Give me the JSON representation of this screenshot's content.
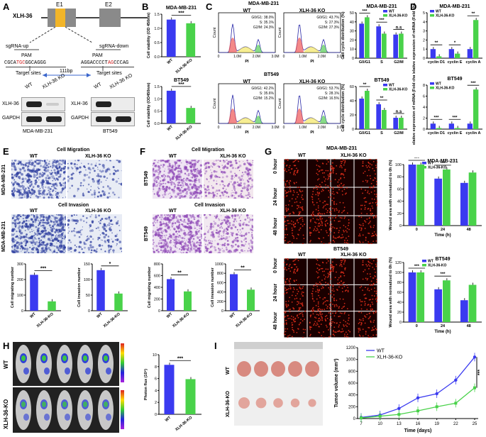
{
  "panel_labels": {
    "A": "A",
    "B": "B",
    "C": "C",
    "D": "D",
    "E": "E",
    "F": "F",
    "G": "G",
    "H": "H",
    "I": "I"
  },
  "colors": {
    "wt": "#3a3af0",
    "ko": "#49d24a",
    "micro_cell": "#2f3fa0",
    "micro_bt": "#8d47b6",
    "wound": "#d42b18",
    "gene_box": "#888888",
    "exon1": "#f2b529"
  },
  "panelA": {
    "gene": "XLH-36",
    "exon1": "E1",
    "exon2": "E2",
    "sgrna_up": "sgRNA-up",
    "sgrna_down": "sgRNA-down",
    "pam_left": "PAM",
    "pam_right": "PAM",
    "seq_left_pre": "CGCA",
    "seq_left_red": "TGC",
    "seq_left_post": "GGCAGGG",
    "seq_right_pre": "AGGACCCCT",
    "seq_right_red": "AG",
    "seq_right_post": "CCCAG",
    "target_left": "Target sites",
    "target_right": "Target sites",
    "distance": "111bp",
    "blot_left": {
      "wt": "WT",
      "ko": "XLH-36 KO",
      "row1": "XLH-36",
      "row2": "GAPDH",
      "cell": "MDA-MB-231"
    },
    "blot_right": {
      "wt": "WT",
      "ko": "XLH-36 KO",
      "row1": "XLH-36",
      "row2": "GAPDH",
      "cell": "BT549"
    }
  },
  "panelB": {
    "top": {
      "title": "MDA-MB-231",
      "ylabel": "Cell viability (OD 450nm)",
      "sig": "***",
      "categories": [
        "WT",
        "XLH-36-KO"
      ],
      "yticks": [
        "0.0",
        "0.5",
        "1.0",
        "1.5"
      ]
    },
    "bottom": {
      "title": "BT549",
      "ylabel": "Cell viability (OD450nm)",
      "sig": "***",
      "categories": [
        "WT",
        "XLH-36-KO"
      ],
      "yticks": [
        "0.0",
        "0.5",
        "1.0",
        "1.5"
      ]
    }
  },
  "panelC": {
    "mda": {
      "title": "MDA-MB-231",
      "wt": "WT",
      "ko": "XLH-36 KO",
      "wt_stats": [
        "G0/G1: 38.0%",
        "S: 35.1%",
        "G2/M: 24.3%"
      ],
      "ko_stats": [
        "G0/G1: 43.7%",
        "S: 27.3%",
        "G2/M: 27.3%"
      ],
      "xticks": [
        "0",
        "1.0M",
        "2.0M",
        "3.0M"
      ],
      "xlabel": "PI",
      "ylabel": "Count"
    },
    "bt": {
      "title": "BT549",
      "wt": "WT",
      "ko": "XLH-36 KO",
      "wt_stats": [
        "G0/G1: 42.2%",
        "S: 35.6%",
        "G2/M: 15.2%"
      ],
      "ko_stats": [
        "G0/G1: 53.7%",
        "S: 28.1%",
        "G2/M: 16.5%"
      ],
      "xticks": [
        "0",
        "1.0M",
        "2.0M",
        "3.0M"
      ],
      "xlabel": "PI",
      "ylabel": "Count"
    },
    "bar_mda": {
      "title": "MDA-MB-231",
      "ylabel": "Cell cycle distribution (%)",
      "yticks": [
        "0",
        "10",
        "20",
        "30",
        "40",
        "50"
      ],
      "legend": [
        "WT",
        "XLH-36-KO"
      ],
      "categories": [
        "G0/G1",
        "S",
        "G2/M"
      ],
      "sig": [
        "***",
        "***",
        "n.s"
      ]
    },
    "bar_bt": {
      "title": "BT549",
      "ylabel": "Cell cycle distribution (%)",
      "yticks": [
        "0",
        "20",
        "40",
        "60"
      ],
      "legend": [
        "WT",
        "XLH-36-KO"
      ],
      "categories": [
        "G0/G1",
        "S",
        "G2/M"
      ],
      "sig": [
        "**",
        "**",
        "n.s"
      ]
    }
  },
  "panelD": {
    "mda": {
      "title": "MDA-MB-231",
      "ylabel": "Relative expression of mRNA (Fold change)",
      "yticks": [
        "0",
        "1",
        "2",
        "3",
        "4",
        "5"
      ],
      "legend": [
        "WT",
        "XLH-36-KO"
      ],
      "categories": [
        "cyclin D1",
        "cyclin E",
        "cyclin A"
      ],
      "sig": [
        "**",
        "*",
        "**"
      ]
    },
    "bt": {
      "title": "BT549",
      "ylabel": "Relative expression of mRNA (Fold change)",
      "yticks": [
        "0",
        "2",
        "4",
        "6",
        "8"
      ],
      "legend": [
        "WT",
        "XLH-36-KO"
      ],
      "categories": [
        "cyclin D1",
        "cyclin E",
        "cyclin A"
      ],
      "sig": [
        "***",
        "***",
        "***"
      ]
    }
  },
  "panelE": {
    "migration_title": "Cell Migration",
    "invasion_title": "Cell Invasion",
    "wt": "WT",
    "ko": "XLH-36 KO",
    "cell": "MDA-MB-231",
    "bar_mig": {
      "ylabel": "Cell migrating number",
      "yticks": [
        "0",
        "100",
        "200",
        "300"
      ],
      "categories": [
        "WT",
        "XLH-36-KO"
      ],
      "sig": "***"
    },
    "bar_inv": {
      "ylabel": "Cell invasion number",
      "yticks": [
        "0",
        "50",
        "100",
        "150"
      ],
      "categories": [
        "WT",
        "XLH-36-KO"
      ],
      "sig": "*"
    }
  },
  "panelF": {
    "migration_title": "Cell  Migration",
    "invasion_title": "Cell  Invasion",
    "wt": "WT",
    "ko": "XLH-36 KO",
    "cell": "BT549",
    "bar_mig": {
      "ylabel": "Cell migrating number",
      "yticks": [
        "0",
        "200",
        "400",
        "600",
        "800"
      ],
      "categories": [
        "WT",
        "XLH-36-KO"
      ],
      "sig": "**"
    },
    "bar_inv": {
      "ylabel": "Cell invasion number",
      "yticks": [
        "0",
        "200",
        "400",
        "600",
        "800",
        "1000"
      ],
      "categories": [
        "WT",
        "XLH-36-KO"
      ],
      "sig": "**"
    }
  },
  "panelG": {
    "mda": {
      "title": "MDA-MB-231",
      "wt": "WT",
      "ko": "XLH-36 KO",
      "rows": [
        "0 hour",
        "24 hour",
        "48 hour"
      ],
      "ylabel": "Wound area with normalized to 0h (%)",
      "xlabel": "Time  (h)",
      "yticks": [
        "0",
        "20",
        "40",
        "60",
        "80",
        "100"
      ],
      "xticks": [
        "0",
        "24",
        "48"
      ],
      "legend": [
        "WT",
        "XLH-36-KO"
      ],
      "sig": [
        "***",
        "***"
      ]
    },
    "bt": {
      "title": "BT549",
      "wt": "WT",
      "ko": "XLH-36 KO",
      "rows": [
        "0 hour",
        "24 hour",
        "48 hour"
      ],
      "ylabel": "Wound area with normalized to 0h (%)",
      "xlabel": "Time  (h)",
      "yticks": [
        "0",
        "20",
        "40",
        "60",
        "80",
        "100",
        "120"
      ],
      "xticks": [
        "0",
        "24",
        "48"
      ],
      "legend": [
        "WT",
        "XLH-36-KO"
      ],
      "sig": [
        "***",
        "***"
      ]
    }
  },
  "panelH": {
    "wt": "WT",
    "ko": "XLH-36-KO",
    "ylabel": "Photon flux (10⁸)",
    "yticks": [
      "0",
      "2",
      "4",
      "6",
      "8",
      "10"
    ],
    "categories": [
      "WT",
      "XLH-36-KO"
    ],
    "sig": "***"
  },
  "panelI": {
    "wt": "WT",
    "ko": "XLH-36-KO",
    "ylabel": "Tumor volume (mm³)",
    "xlabel": "Time (days)",
    "xticks": [
      "7",
      "10",
      "13",
      "16",
      "19",
      "22",
      "25"
    ],
    "yticks": [
      "0",
      "200",
      "400",
      "600",
      "800",
      "1000",
      "1200"
    ],
    "legend": [
      "WT",
      "XLH-36-KO"
    ],
    "sig": "***"
  },
  "chart_data": [
    {
      "id": "B_mda",
      "type": "bar",
      "categories": [
        "WT",
        "XLH-36-KO"
      ],
      "values": [
        1.31,
        1.18
      ],
      "ylim": [
        0,
        1.5
      ],
      "ylabel": "Cell viability (OD 450nm)",
      "title": "MDA-MB-231"
    },
    {
      "id": "B_bt",
      "type": "bar",
      "categories": [
        "WT",
        "XLH-36-KO"
      ],
      "values": [
        1.33,
        0.63
      ],
      "ylim": [
        0,
        1.5
      ],
      "ylabel": "Cell viability (OD450nm)",
      "title": "BT549"
    },
    {
      "id": "C_mda",
      "type": "bar",
      "categories": [
        "G0/G1",
        "S",
        "G2/M"
      ],
      "series": [
        {
          "name": "WT",
          "values": [
            38,
            35,
            26
          ]
        },
        {
          "name": "XLH-36-KO",
          "values": [
            45,
            27,
            27
          ]
        }
      ],
      "ylim": [
        0,
        50
      ],
      "ylabel": "Cell cycle distribution (%)",
      "title": "MDA-MB-231"
    },
    {
      "id": "C_bt",
      "type": "bar",
      "categories": [
        "G0/G1",
        "S",
        "G2/M"
      ],
      "series": [
        {
          "name": "WT",
          "values": [
            43,
            35,
            16
          ]
        },
        {
          "name": "XLH-36-KO",
          "values": [
            54,
            27,
            16
          ]
        }
      ],
      "ylim": [
        0,
        60
      ],
      "ylabel": "Cell cycle distribution (%)",
      "title": "BT549"
    },
    {
      "id": "D_mda",
      "type": "bar",
      "categories": [
        "cyclin D1",
        "cyclin E",
        "cyclin A"
      ],
      "series": [
        {
          "name": "WT",
          "values": [
            1,
            1,
            1
          ]
        },
        {
          "name": "XLH-36-KO",
          "values": [
            0.2,
            0.5,
            4.2
          ]
        }
      ],
      "ylim": [
        0,
        5
      ],
      "ylabel": "Relative expression of mRNA (Fold change)",
      "title": "MDA-MB-231"
    },
    {
      "id": "D_bt",
      "type": "bar",
      "categories": [
        "cyclin D1",
        "cyclin E",
        "cyclin A"
      ],
      "series": [
        {
          "name": "WT",
          "values": [
            1,
            1,
            1
          ]
        },
        {
          "name": "XLH-36-KO",
          "values": [
            0.2,
            0.2,
            7.2
          ]
        }
      ],
      "ylim": [
        0,
        8
      ],
      "ylabel": "Relative expression of mRNA (Fold change)",
      "title": "BT549"
    },
    {
      "id": "E_mig",
      "type": "bar",
      "categories": [
        "WT",
        "XLH-36-KO"
      ],
      "values": [
        230,
        60
      ],
      "ylim": [
        0,
        300
      ],
      "ylabel": "Cell migrating number"
    },
    {
      "id": "E_inv",
      "type": "bar",
      "categories": [
        "WT",
        "XLH-36-KO"
      ],
      "values": [
        130,
        55
      ],
      "ylim": [
        0,
        150
      ],
      "ylabel": "Cell invasion number"
    },
    {
      "id": "F_mig",
      "type": "bar",
      "categories": [
        "WT",
        "XLH-36-KO"
      ],
      "values": [
        540,
        330
      ],
      "ylim": [
        0,
        800
      ],
      "ylabel": "Cell migrating number"
    },
    {
      "id": "F_inv",
      "type": "bar",
      "categories": [
        "WT",
        "XLH-36-KO"
      ],
      "values": [
        780,
        450
      ],
      "ylim": [
        0,
        1000
      ],
      "ylabel": "Cell invasion number"
    },
    {
      "id": "G_mda",
      "type": "bar",
      "categories": [
        "0",
        "24",
        "48"
      ],
      "series": [
        {
          "name": "WT",
          "values": [
            100,
            77,
            70
          ]
        },
        {
          "name": "XLH-36-KO",
          "values": [
            100,
            92,
            87
          ]
        }
      ],
      "ylim": [
        0,
        100
      ],
      "xlabel": "Time  (h)",
      "ylabel": "Wound area with normalized to 0h (%)"
    },
    {
      "id": "G_bt",
      "type": "bar",
      "categories": [
        "0",
        "24",
        "48"
      ],
      "series": [
        {
          "name": "WT",
          "values": [
            100,
            66,
            44
          ]
        },
        {
          "name": "XLH-36-KO",
          "values": [
            100,
            84,
            75
          ]
        }
      ],
      "ylim": [
        0,
        120
      ],
      "xlabel": "Time  (h)",
      "ylabel": "Wound area with normalized to 0h (%)"
    },
    {
      "id": "H",
      "type": "bar",
      "categories": [
        "WT",
        "XLH-36-KO"
      ],
      "values": [
        8.3,
        5.9
      ],
      "ylim": [
        0,
        10
      ],
      "ylabel": "Photon flux (10⁸)"
    },
    {
      "id": "I",
      "type": "line",
      "x": [
        7,
        10,
        13,
        16,
        19,
        22,
        25
      ],
      "series": [
        {
          "name": "WT",
          "values": [
            20,
            60,
            170,
            350,
            420,
            650,
            1040
          ]
        },
        {
          "name": "XLH-36-KO",
          "values": [
            10,
            40,
            70,
            130,
            200,
            260,
            520
          ]
        }
      ],
      "ylim": [
        0,
        1200
      ],
      "xlabel": "Time (days)",
      "ylabel": "Tumor volume (mm³)"
    }
  ]
}
